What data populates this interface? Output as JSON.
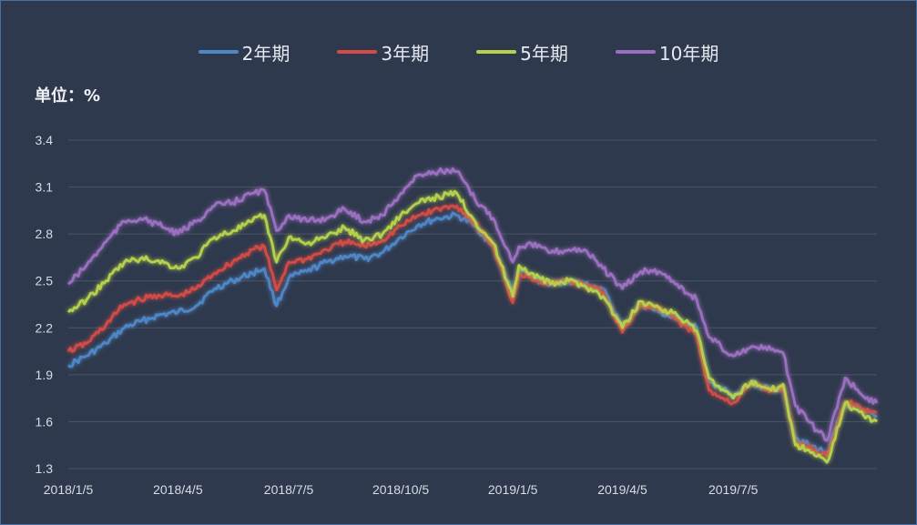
{
  "chart_data": {
    "type": "line",
    "unit_label": "单位：%",
    "y_ticks": [
      3.4,
      3.1,
      2.8,
      2.5,
      2.2,
      1.9,
      1.6,
      1.3
    ],
    "y_tick_labels": [
      "3.4",
      "3.1",
      "2.8",
      "2.5",
      "2.2",
      "1.9",
      "1.6",
      "1.3"
    ],
    "ylim": [
      1.3,
      3.4
    ],
    "x_tick_labels": [
      "2018/1/5",
      "2018/4/5",
      "2018/7/5",
      "2018/10/5",
      "2019/1/5",
      "2019/4/5",
      "2019/7/5"
    ],
    "x_tick_dates": [
      "2018-01-05",
      "2018-04-05",
      "2018-07-05",
      "2018-10-05",
      "2019-01-05",
      "2019-04-05",
      "2019-07-05"
    ],
    "x_range": [
      "2018-01-05",
      "2019-10-31"
    ],
    "grid": true,
    "legend_position": "top",
    "series": [
      {
        "name": "2年期",
        "color": "#4f86c6",
        "points": [
          [
            "2018-01-05",
            1.96
          ],
          [
            "2018-01-20",
            2.02
          ],
          [
            "2018-02-05",
            2.1
          ],
          [
            "2018-02-20",
            2.2
          ],
          [
            "2018-03-05",
            2.24
          ],
          [
            "2018-03-20",
            2.28
          ],
          [
            "2018-04-05",
            2.3
          ],
          [
            "2018-04-20",
            2.34
          ],
          [
            "2018-05-05",
            2.45
          ],
          [
            "2018-05-20",
            2.5
          ],
          [
            "2018-06-05",
            2.55
          ],
          [
            "2018-06-15",
            2.58
          ],
          [
            "2018-06-25",
            2.34
          ],
          [
            "2018-07-05",
            2.52
          ],
          [
            "2018-07-20",
            2.56
          ],
          [
            "2018-08-05",
            2.62
          ],
          [
            "2018-08-20",
            2.66
          ],
          [
            "2018-09-05",
            2.64
          ],
          [
            "2018-09-20",
            2.68
          ],
          [
            "2018-10-05",
            2.78
          ],
          [
            "2018-10-20",
            2.86
          ],
          [
            "2018-11-05",
            2.9
          ],
          [
            "2018-11-20",
            2.92
          ],
          [
            "2018-12-05",
            2.85
          ],
          [
            "2018-12-20",
            2.72
          ],
          [
            "2019-01-05",
            2.42
          ],
          [
            "2019-01-10",
            2.57
          ],
          [
            "2019-01-20",
            2.52
          ],
          [
            "2019-02-05",
            2.48
          ],
          [
            "2019-02-20",
            2.5
          ],
          [
            "2019-03-05",
            2.48
          ],
          [
            "2019-03-20",
            2.45
          ],
          [
            "2019-04-05",
            2.2
          ],
          [
            "2019-04-20",
            2.35
          ],
          [
            "2019-05-05",
            2.3
          ],
          [
            "2019-05-20",
            2.25
          ],
          [
            "2019-06-05",
            2.2
          ],
          [
            "2019-06-15",
            1.85
          ],
          [
            "2019-06-25",
            1.82
          ],
          [
            "2019-07-05",
            1.75
          ],
          [
            "2019-07-20",
            1.85
          ],
          [
            "2019-08-05",
            1.8
          ],
          [
            "2019-08-15",
            1.82
          ],
          [
            "2019-08-25",
            1.5
          ],
          [
            "2019-09-05",
            1.45
          ],
          [
            "2019-09-20",
            1.4
          ],
          [
            "2019-10-05",
            1.72
          ],
          [
            "2019-10-20",
            1.66
          ],
          [
            "2019-10-31",
            1.64
          ]
        ]
      },
      {
        "name": "3年期",
        "color": "#d24b45",
        "points": [
          [
            "2018-01-05",
            2.05
          ],
          [
            "2018-01-20",
            2.1
          ],
          [
            "2018-02-05",
            2.22
          ],
          [
            "2018-02-20",
            2.35
          ],
          [
            "2018-03-05",
            2.38
          ],
          [
            "2018-03-20",
            2.41
          ],
          [
            "2018-04-05",
            2.4
          ],
          [
            "2018-04-20",
            2.45
          ],
          [
            "2018-05-05",
            2.55
          ],
          [
            "2018-05-20",
            2.62
          ],
          [
            "2018-06-05",
            2.7
          ],
          [
            "2018-06-15",
            2.72
          ],
          [
            "2018-06-25",
            2.44
          ],
          [
            "2018-07-05",
            2.62
          ],
          [
            "2018-07-20",
            2.64
          ],
          [
            "2018-08-05",
            2.7
          ],
          [
            "2018-08-20",
            2.75
          ],
          [
            "2018-09-05",
            2.72
          ],
          [
            "2018-09-20",
            2.76
          ],
          [
            "2018-10-05",
            2.85
          ],
          [
            "2018-10-20",
            2.92
          ],
          [
            "2018-11-05",
            2.96
          ],
          [
            "2018-11-20",
            2.98
          ],
          [
            "2018-12-05",
            2.87
          ],
          [
            "2018-12-20",
            2.72
          ],
          [
            "2019-01-05",
            2.36
          ],
          [
            "2019-01-10",
            2.55
          ],
          [
            "2019-01-20",
            2.52
          ],
          [
            "2019-02-05",
            2.48
          ],
          [
            "2019-02-20",
            2.5
          ],
          [
            "2019-03-05",
            2.47
          ],
          [
            "2019-03-20",
            2.43
          ],
          [
            "2019-04-05",
            2.17
          ],
          [
            "2019-04-20",
            2.35
          ],
          [
            "2019-05-05",
            2.32
          ],
          [
            "2019-05-20",
            2.25
          ],
          [
            "2019-06-05",
            2.15
          ],
          [
            "2019-06-15",
            1.8
          ],
          [
            "2019-06-25",
            1.75
          ],
          [
            "2019-07-05",
            1.72
          ],
          [
            "2019-07-20",
            1.84
          ],
          [
            "2019-08-05",
            1.8
          ],
          [
            "2019-08-15",
            1.82
          ],
          [
            "2019-08-25",
            1.46
          ],
          [
            "2019-09-05",
            1.44
          ],
          [
            "2019-09-20",
            1.38
          ],
          [
            "2019-10-05",
            1.73
          ],
          [
            "2019-10-20",
            1.68
          ],
          [
            "2019-10-31",
            1.66
          ]
        ]
      },
      {
        "name": "5年期",
        "color": "#b5d04c",
        "points": [
          [
            "2018-01-05",
            2.3
          ],
          [
            "2018-01-20",
            2.38
          ],
          [
            "2018-02-05",
            2.5
          ],
          [
            "2018-02-20",
            2.62
          ],
          [
            "2018-03-05",
            2.64
          ],
          [
            "2018-03-20",
            2.63
          ],
          [
            "2018-04-05",
            2.58
          ],
          [
            "2018-04-20",
            2.65
          ],
          [
            "2018-05-05",
            2.78
          ],
          [
            "2018-05-20",
            2.82
          ],
          [
            "2018-06-05",
            2.88
          ],
          [
            "2018-06-15",
            2.92
          ],
          [
            "2018-06-25",
            2.62
          ],
          [
            "2018-07-05",
            2.78
          ],
          [
            "2018-07-20",
            2.74
          ],
          [
            "2018-08-05",
            2.78
          ],
          [
            "2018-08-20",
            2.84
          ],
          [
            "2018-09-05",
            2.76
          ],
          [
            "2018-09-20",
            2.8
          ],
          [
            "2018-10-05",
            2.92
          ],
          [
            "2018-10-20",
            3.0
          ],
          [
            "2018-11-05",
            3.04
          ],
          [
            "2018-11-20",
            3.06
          ],
          [
            "2018-12-05",
            2.88
          ],
          [
            "2018-12-20",
            2.74
          ],
          [
            "2019-01-05",
            2.4
          ],
          [
            "2019-01-10",
            2.6
          ],
          [
            "2019-01-20",
            2.55
          ],
          [
            "2019-02-05",
            2.48
          ],
          [
            "2019-02-20",
            2.5
          ],
          [
            "2019-03-05",
            2.47
          ],
          [
            "2019-03-20",
            2.4
          ],
          [
            "2019-04-05",
            2.2
          ],
          [
            "2019-04-20",
            2.37
          ],
          [
            "2019-05-05",
            2.33
          ],
          [
            "2019-05-20",
            2.28
          ],
          [
            "2019-06-05",
            2.18
          ],
          [
            "2019-06-15",
            1.88
          ],
          [
            "2019-06-25",
            1.8
          ],
          [
            "2019-07-05",
            1.75
          ],
          [
            "2019-07-20",
            1.86
          ],
          [
            "2019-08-05",
            1.8
          ],
          [
            "2019-08-15",
            1.84
          ],
          [
            "2019-08-25",
            1.45
          ],
          [
            "2019-09-05",
            1.42
          ],
          [
            "2019-09-20",
            1.34
          ],
          [
            "2019-10-05",
            1.72
          ],
          [
            "2019-10-20",
            1.64
          ],
          [
            "2019-10-31",
            1.6
          ]
        ]
      },
      {
        "name": "10年期",
        "color": "#9b6fc0",
        "points": [
          [
            "2018-01-05",
            2.48
          ],
          [
            "2018-01-20",
            2.6
          ],
          [
            "2018-02-05",
            2.75
          ],
          [
            "2018-02-20",
            2.88
          ],
          [
            "2018-03-05",
            2.9
          ],
          [
            "2018-03-20",
            2.86
          ],
          [
            "2018-04-05",
            2.8
          ],
          [
            "2018-04-20",
            2.88
          ],
          [
            "2018-05-05",
            2.98
          ],
          [
            "2018-05-20",
            3.0
          ],
          [
            "2018-06-05",
            3.06
          ],
          [
            "2018-06-15",
            3.08
          ],
          [
            "2018-06-25",
            2.82
          ],
          [
            "2018-07-05",
            2.92
          ],
          [
            "2018-07-20",
            2.88
          ],
          [
            "2018-08-05",
            2.9
          ],
          [
            "2018-08-20",
            2.96
          ],
          [
            "2018-09-05",
            2.88
          ],
          [
            "2018-09-20",
            2.92
          ],
          [
            "2018-10-05",
            3.06
          ],
          [
            "2018-10-20",
            3.18
          ],
          [
            "2018-11-05",
            3.2
          ],
          [
            "2018-11-20",
            3.2
          ],
          [
            "2018-12-05",
            3.02
          ],
          [
            "2018-12-20",
            2.9
          ],
          [
            "2019-01-05",
            2.62
          ],
          [
            "2019-01-10",
            2.72
          ],
          [
            "2019-01-20",
            2.74
          ],
          [
            "2019-02-05",
            2.68
          ],
          [
            "2019-02-20",
            2.7
          ],
          [
            "2019-03-05",
            2.7
          ],
          [
            "2019-03-20",
            2.58
          ],
          [
            "2019-04-05",
            2.45
          ],
          [
            "2019-04-20",
            2.56
          ],
          [
            "2019-05-05",
            2.56
          ],
          [
            "2019-05-20",
            2.48
          ],
          [
            "2019-06-05",
            2.38
          ],
          [
            "2019-06-15",
            2.14
          ],
          [
            "2019-06-25",
            2.08
          ],
          [
            "2019-07-05",
            2.02
          ],
          [
            "2019-07-20",
            2.08
          ],
          [
            "2019-08-05",
            2.06
          ],
          [
            "2019-08-15",
            2.04
          ],
          [
            "2019-08-25",
            1.7
          ],
          [
            "2019-09-05",
            1.6
          ],
          [
            "2019-09-20",
            1.48
          ],
          [
            "2019-10-05",
            1.88
          ],
          [
            "2019-10-20",
            1.76
          ],
          [
            "2019-10-31",
            1.72
          ]
        ]
      }
    ]
  }
}
